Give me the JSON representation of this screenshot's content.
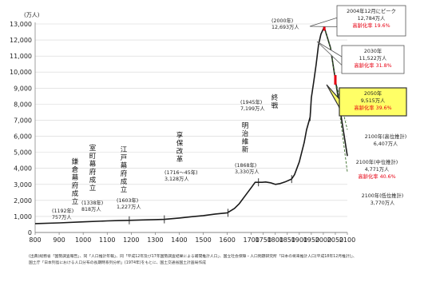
{
  "chart_data": {
    "type": "line",
    "title": "",
    "xlabel": "",
    "ylabel": "",
    "unit_label": "(万人)",
    "xlim": [
      800,
      2100
    ],
    "ylim": [
      0,
      13000
    ],
    "grid": "horizontal",
    "x_ticks": [
      800,
      900,
      1000,
      1100,
      1200,
      1300,
      1400,
      1500,
      1600,
      1700,
      1750,
      1800,
      1850,
      1900,
      1950,
      2000,
      2050,
      2100
    ],
    "y_ticks": [
      0,
      1000,
      2000,
      3000,
      4000,
      5000,
      6000,
      7000,
      8000,
      9000,
      10000,
      11000,
      12000,
      13000
    ],
    "y_tick_labels": [
      "0",
      "1,000",
      "2,000",
      "3,000",
      "4,000",
      "5,000",
      "6,000",
      "7,000",
      "8,000",
      "9,000",
      "10,000",
      "11,000",
      "12,000",
      "13,000"
    ],
    "series": [
      {
        "points": [
          [
            800,
            551
          ],
          [
            900,
            600
          ],
          [
            1000,
            660
          ],
          [
            1100,
            720
          ],
          [
            1150,
            740
          ],
          [
            1192,
            757
          ],
          [
            1250,
            780
          ],
          [
            1300,
            800
          ],
          [
            1338,
            818
          ],
          [
            1400,
            900
          ],
          [
            1450,
            980
          ],
          [
            1500,
            1050
          ],
          [
            1550,
            1150
          ],
          [
            1600,
            1227
          ],
          [
            1630,
            1500
          ],
          [
            1650,
            1800
          ],
          [
            1680,
            2400
          ],
          [
            1700,
            2800
          ],
          [
            1716,
            3128
          ],
          [
            1745,
            3128
          ],
          [
            1760,
            3150
          ],
          [
            1780,
            3100
          ],
          [
            1800,
            3000
          ],
          [
            1820,
            3050
          ],
          [
            1840,
            3150
          ],
          [
            1868,
            3330
          ],
          [
            1880,
            3600
          ],
          [
            1900,
            4400
          ],
          [
            1920,
            5600
          ],
          [
            1930,
            6400
          ],
          [
            1945,
            7199
          ],
          [
            1950,
            8400
          ],
          [
            1960,
            9400
          ],
          [
            1970,
            10470
          ],
          [
            1980,
            11700
          ],
          [
            1990,
            12360
          ],
          [
            2000,
            12693
          ],
          [
            2004,
            12784
          ]
        ]
      },
      {
        "name": "2100年(高位推計)",
        "points": [
          [
            2004,
            12784
          ],
          [
            2030,
            11522
          ],
          [
            2050,
            9515
          ],
          [
            2100,
            6407
          ]
        ]
      },
      {
        "name": "2100年(中位推計)",
        "points": [
          [
            2004,
            12784
          ],
          [
            2030,
            11522
          ],
          [
            2050,
            9515
          ],
          [
            2100,
            4771
          ]
        ]
      },
      {
        "name": "2100年(低位推計)",
        "points": [
          [
            2004,
            12784
          ],
          [
            2030,
            11522
          ],
          [
            2050,
            9515
          ],
          [
            2100,
            3770
          ]
        ]
      }
    ],
    "events": [
      {
        "label": "鎌倉幕府成立",
        "x": 1192,
        "y": 757,
        "note": "(1192年)\n757万人"
      },
      {
        "label": "室町幕府成立",
        "x": 1338,
        "y": 818,
        "note": "(1338年)\n818万人"
      },
      {
        "label": "江戸幕府成立",
        "x": 1603,
        "y": 1227,
        "note": "(1603年)\n1,227万人"
      },
      {
        "label": "享保改革",
        "x": 1730,
        "y": 3128,
        "note": "(1716～45年)\n3,128万人"
      },
      {
        "label": "明治維新",
        "x": 1868,
        "y": 3330,
        "note": "(1868年)\n3,330万人"
      },
      {
        "label": "終戦",
        "x": 1945,
        "y": 7199,
        "note": "(1945年)\n7,199万人"
      },
      {
        "label": "",
        "x": 2000,
        "y": 12693,
        "note": "(2000年)\n12,693万人"
      }
    ],
    "callouts": [
      {
        "lines": [
          "2004年12月にピーク",
          "12,784万人"
        ],
        "red": "高齢化率 19.6%"
      },
      {
        "lines": [
          "2030年",
          "11,522万人"
        ],
        "red": "高齢化率 31.8%"
      },
      {
        "lines": [
          "2050年",
          "9,515万人"
        ],
        "red": "高齢化率 39.6%",
        "highlight": true
      },
      {
        "lines": [
          "2100年(高位推計)",
          "6,407万人"
        ],
        "red": ""
      },
      {
        "lines": [
          "2100年(中位推計)",
          "4,771万人"
        ],
        "red": "高齢化率 40.6%"
      },
      {
        "lines": [
          "2100年(低位推計)",
          "3,770万人"
        ],
        "red": ""
      }
    ],
    "source_lines": [
      "(出典)総務省「国勢調査報告」、同「人口推計年報」、同「平成12年及び17年国勢調査結果による補間推計人口」、国立社会保障・人口問題研究所「日本の将来推計人口(平成18年12月推計)」、",
      "国土庁「日本列島における人口分布の長期時系列分析」(1974年)をもとに、国土交通省国土計画局作成"
    ]
  }
}
